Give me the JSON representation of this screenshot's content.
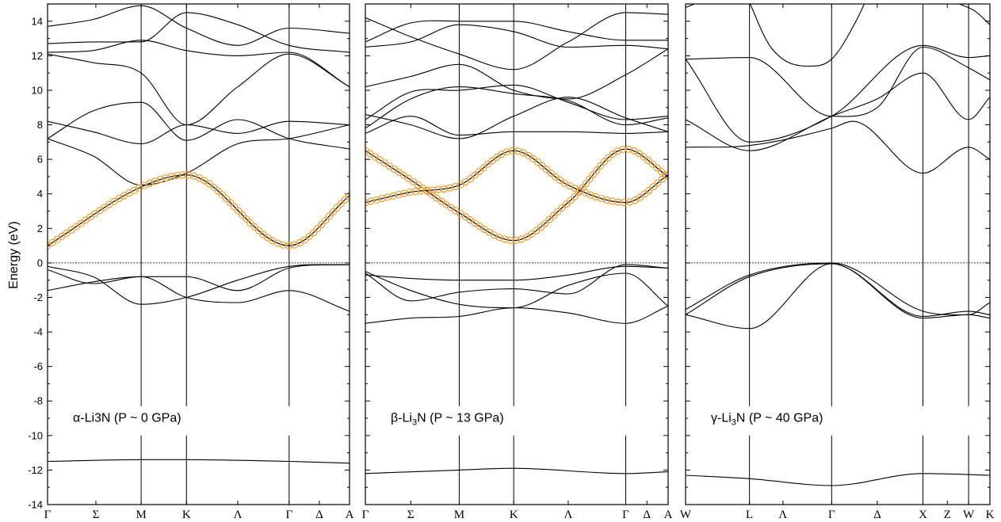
{
  "chart_data": {
    "type": "line",
    "ylabel": "Energy (eV)",
    "ylim": [
      -14,
      15
    ],
    "yticks": [
      -14,
      -12,
      -10,
      -8,
      -6,
      -4,
      -2,
      0,
      2,
      4,
      6,
      8,
      10,
      12,
      14
    ],
    "colors": {
      "bands": "#000000",
      "highlight": "#f39c2a"
    },
    "panels": [
      {
        "annotation": "α-Li3N (P ~ 0 GPa)",
        "kpath": [
          "Γ",
          "Σ",
          "M",
          "K",
          "Λ",
          "Γ",
          "Δ",
          "A"
        ],
        "kpos": [
          0,
          0.16,
          0.31,
          0.46,
          0.63,
          0.8,
          0.9,
          1.0
        ],
        "vlines": [
          2,
          3,
          5
        ],
        "core_band": [
          [
            0,
            -11.5
          ],
          [
            0.31,
            -11.4
          ],
          [
            0.46,
            -11.4
          ],
          [
            0.8,
            -11.5
          ],
          [
            1.0,
            -11.6
          ]
        ],
        "bands": [
          [
            [
              0,
              -0.2
            ],
            [
              0.15,
              -0.8
            ],
            [
              0.31,
              -2.4
            ],
            [
              0.46,
              -2.0
            ],
            [
              0.63,
              -1.0
            ],
            [
              0.8,
              -0.2
            ],
            [
              1.0,
              -0.1
            ]
          ],
          [
            [
              0,
              -0.4
            ],
            [
              0.15,
              -1.2
            ],
            [
              0.31,
              -0.8
            ],
            [
              0.46,
              -0.8
            ],
            [
              0.63,
              -1.6
            ],
            [
              0.8,
              -0.3
            ],
            [
              1.0,
              -0.1
            ]
          ],
          [
            [
              0,
              -1.6
            ],
            [
              0.15,
              -1.1
            ],
            [
              0.31,
              -0.8
            ],
            [
              0.46,
              -2.0
            ],
            [
              0.63,
              -2.3
            ],
            [
              0.8,
              -1.6
            ],
            [
              1.0,
              -2.8
            ]
          ],
          [
            [
              0,
              7.2
            ],
            [
              0.15,
              6.2
            ],
            [
              0.31,
              4.5
            ],
            [
              0.46,
              5.2
            ],
            [
              0.63,
              6.9
            ],
            [
              0.8,
              7.2
            ],
            [
              1.0,
              8.0
            ]
          ],
          [
            [
              0,
              8.2
            ],
            [
              0.15,
              7.6
            ],
            [
              0.31,
              6.9
            ],
            [
              0.46,
              8.0
            ],
            [
              0.63,
              7.5
            ],
            [
              0.8,
              8.2
            ],
            [
              1.0,
              8.0
            ]
          ],
          [
            [
              0,
              7.2
            ],
            [
              0.15,
              8.8
            ],
            [
              0.31,
              9.3
            ],
            [
              0.46,
              7.1
            ],
            [
              0.63,
              8.3
            ],
            [
              0.8,
              7.2
            ],
            [
              1.0,
              6.6
            ]
          ],
          [
            [
              0,
              12.1
            ],
            [
              0.15,
              11.6
            ],
            [
              0.31,
              11.0
            ],
            [
              0.46,
              8.0
            ],
            [
              0.63,
              10.2
            ],
            [
              0.8,
              12.1
            ],
            [
              1.0,
              10.2
            ]
          ],
          [
            [
              0,
              12.2
            ],
            [
              0.15,
              12.3
            ],
            [
              0.31,
              12.9
            ],
            [
              0.46,
              12.3
            ],
            [
              0.63,
              12.0
            ],
            [
              0.8,
              12.2
            ],
            [
              1.0,
              10.2
            ]
          ],
          [
            [
              0,
              13.7
            ],
            [
              0.15,
              14.1
            ],
            [
              0.31,
              14.9
            ],
            [
              0.46,
              13.6
            ],
            [
              0.63,
              12.6
            ],
            [
              0.8,
              13.6
            ],
            [
              1.0,
              13.3
            ]
          ],
          [
            [
              0,
              12.7
            ],
            [
              0.15,
              12.8
            ],
            [
              0.31,
              12.8
            ],
            [
              0.46,
              14.5
            ],
            [
              0.63,
              13.8
            ],
            [
              0.8,
              12.6
            ],
            [
              1.0,
              12.2
            ]
          ]
        ],
        "highlight": [
          [
            0,
            1.0
          ],
          [
            0.31,
            4.4
          ],
          [
            0.46,
            5.1
          ],
          [
            0.8,
            1.0
          ],
          [
            1.0,
            3.9
          ]
        ]
      },
      {
        "annotation": "β-Li3N (P ~ 13 GPa)",
        "kpath": [
          "Γ",
          "Σ",
          "M",
          "K",
          "Λ",
          "Γ",
          "Δ",
          "A"
        ],
        "kpos": [
          0,
          0.15,
          0.31,
          0.49,
          0.67,
          0.86,
          0.93,
          1.0
        ],
        "vlines": [
          2,
          3,
          5
        ],
        "core_band": [
          [
            0,
            -12.2
          ],
          [
            0.31,
            -12.0
          ],
          [
            0.49,
            -11.9
          ],
          [
            0.86,
            -12.2
          ],
          [
            1.0,
            -12.1
          ]
        ],
        "bands": [
          [
            [
              0,
              -0.5
            ],
            [
              0.15,
              -1.6
            ],
            [
              0.31,
              -2.4
            ],
            [
              0.49,
              -2.6
            ],
            [
              0.67,
              -1.3
            ],
            [
              0.86,
              -0.6
            ],
            [
              1.0,
              -2.5
            ]
          ],
          [
            [
              0,
              -0.6
            ],
            [
              0.15,
              -2.2
            ],
            [
              0.31,
              -1.7
            ],
            [
              0.49,
              -1.5
            ],
            [
              0.67,
              -1.8
            ],
            [
              0.86,
              -0.1
            ],
            [
              1.0,
              -0.3
            ]
          ],
          [
            [
              0,
              -0.7
            ],
            [
              0.15,
              -0.9
            ],
            [
              0.31,
              -1.0
            ],
            [
              0.49,
              -1.0
            ],
            [
              0.67,
              -0.7
            ],
            [
              0.86,
              -0.2
            ],
            [
              1.0,
              -0.3
            ]
          ],
          [
            [
              0,
              -3.5
            ],
            [
              0.15,
              -3.2
            ],
            [
              0.31,
              -3.1
            ],
            [
              0.49,
              -2.6
            ],
            [
              0.67,
              -2.9
            ],
            [
              0.86,
              -3.5
            ],
            [
              1.0,
              -2.5
            ]
          ],
          [
            [
              0,
              7.5
            ],
            [
              0.15,
              8.5
            ],
            [
              0.31,
              7.4
            ],
            [
              0.49,
              7.6
            ],
            [
              0.67,
              7.6
            ],
            [
              0.86,
              7.5
            ],
            [
              1.0,
              7.6
            ]
          ],
          [
            [
              0,
              7.8
            ],
            [
              0.15,
              9.5
            ],
            [
              0.31,
              10.2
            ],
            [
              0.49,
              9.8
            ],
            [
              0.67,
              9.4
            ],
            [
              0.86,
              8.0
            ],
            [
              1.0,
              8.4
            ]
          ],
          [
            [
              0,
              8.3
            ],
            [
              0.15,
              9.9
            ],
            [
              0.31,
              10.0
            ],
            [
              0.49,
              10.3
            ],
            [
              0.67,
              9.3
            ],
            [
              0.86,
              8.3
            ],
            [
              1.0,
              8.5
            ]
          ],
          [
            [
              0,
              8.6
            ],
            [
              0.15,
              8.0
            ],
            [
              0.31,
              7.2
            ],
            [
              0.49,
              8.5
            ],
            [
              0.67,
              9.6
            ],
            [
              0.86,
              8.4
            ],
            [
              1.0,
              7.6
            ]
          ],
          [
            [
              0,
              10.2
            ],
            [
              0.15,
              10.8
            ],
            [
              0.31,
              11.5
            ],
            [
              0.49,
              10.0
            ],
            [
              0.67,
              9.5
            ],
            [
              0.86,
              10.9
            ],
            [
              1.0,
              12.4
            ]
          ],
          [
            [
              0,
              12.5
            ],
            [
              0.15,
              12.8
            ],
            [
              0.31,
              13.8
            ],
            [
              0.49,
              13.4
            ],
            [
              0.67,
              12.5
            ],
            [
              0.86,
              12.6
            ],
            [
              1.0,
              12.4
            ]
          ],
          [
            [
              0,
              14.2
            ],
            [
              0.15,
              13.1
            ],
            [
              0.31,
              12.1
            ],
            [
              0.49,
              11.2
            ],
            [
              0.67,
              12.8
            ],
            [
              0.86,
              14.5
            ],
            [
              1.0,
              14.4
            ]
          ],
          [
            [
              0,
              12.8
            ],
            [
              0.15,
              13.9
            ],
            [
              0.31,
              14.0
            ],
            [
              0.49,
              14.0
            ],
            [
              0.67,
              13.4
            ],
            [
              0.86,
              12.9
            ],
            [
              1.0,
              12.9
            ]
          ]
        ],
        "highlight_series": [
          [
            [
              0,
              6.5
            ],
            [
              0.15,
              4.8
            ],
            [
              0.31,
              2.9
            ],
            [
              0.49,
              1.3
            ],
            [
              0.67,
              3.5
            ],
            [
              0.86,
              6.6
            ],
            [
              1.0,
              5.0
            ]
          ],
          [
            [
              0,
              3.5
            ],
            [
              0.15,
              4.1
            ],
            [
              0.31,
              4.5
            ],
            [
              0.49,
              6.5
            ],
            [
              0.67,
              4.5
            ],
            [
              0.86,
              3.5
            ],
            [
              1.0,
              5.1
            ]
          ]
        ]
      },
      {
        "annotation": "γ-Li3N (P ~ 40 GPa)",
        "kpath": [
          "W",
          "L",
          "Λ",
          "Γ",
          "Δ",
          "X",
          "Z",
          "W",
          "K"
        ],
        "kpos": [
          0,
          0.21,
          0.32,
          0.48,
          0.63,
          0.78,
          0.86,
          0.93,
          1.0
        ],
        "vlines": [
          1,
          3,
          5,
          7
        ],
        "core_band": [
          [
            0,
            -12.3
          ],
          [
            0.21,
            -12.5
          ],
          [
            0.48,
            -12.9
          ],
          [
            0.78,
            -12.2
          ],
          [
            1.0,
            -12.3
          ]
        ],
        "bands": [
          [
            [
              0,
              -2.7
            ],
            [
              0.21,
              -0.7
            ],
            [
              0.48,
              0.0
            ],
            [
              0.78,
              -2.8
            ],
            [
              0.93,
              -3.0
            ],
            [
              1.0,
              -2.3
            ]
          ],
          [
            [
              0,
              -3.0
            ],
            [
              0.21,
              -0.8
            ],
            [
              0.48,
              -0.05
            ],
            [
              0.78,
              -3.1
            ],
            [
              0.93,
              -2.8
            ],
            [
              1.0,
              -3.0
            ]
          ],
          [
            [
              0,
              -3.0
            ],
            [
              0.21,
              -3.8
            ],
            [
              0.48,
              -0.05
            ],
            [
              0.78,
              -3.2
            ],
            [
              0.93,
              -3.0
            ],
            [
              1.0,
              -3.2
            ]
          ],
          [
            [
              0,
              6.7
            ],
            [
              0.21,
              6.8
            ],
            [
              0.48,
              7.8
            ],
            [
              0.55,
              8.2
            ],
            [
              0.78,
              5.2
            ],
            [
              0.93,
              6.7
            ],
            [
              1.0,
              6.0
            ]
          ],
          [
            [
              0,
              8.3
            ],
            [
              0.21,
              6.5
            ],
            [
              0.48,
              8.5
            ],
            [
              0.63,
              9.5
            ],
            [
              0.78,
              11.0
            ],
            [
              0.93,
              8.3
            ],
            [
              1.0,
              9.6
            ]
          ],
          [
            [
              0,
              11.8
            ],
            [
              0.21,
              7.0
            ],
            [
              0.48,
              8.5
            ],
            [
              0.78,
              12.6
            ],
            [
              0.93,
              11.9
            ],
            [
              1.0,
              12.0
            ]
          ],
          [
            [
              0,
              11.8
            ],
            [
              0.21,
              11.9
            ],
            [
              0.48,
              8.5
            ],
            [
              0.63,
              9.0
            ],
            [
              0.78,
              12.5
            ],
            [
              0.93,
              11.3
            ],
            [
              1.0,
              10.6
            ]
          ],
          [
            [
              0.2,
              15.5
            ],
            [
              0.28,
              12.5
            ],
            [
              0.4,
              11.4
            ],
            [
              0.48,
              11.8
            ],
            [
              0.56,
              14.0
            ],
            [
              0.6,
              15.5
            ]
          ],
          [
            [
              0,
              14.8
            ],
            [
              0.03,
              15.0
            ]
          ],
          [
            [
              0.9,
              15.0
            ],
            [
              0.95,
              14.6
            ],
            [
              1.0,
              13.8
            ]
          ]
        ]
      }
    ]
  }
}
